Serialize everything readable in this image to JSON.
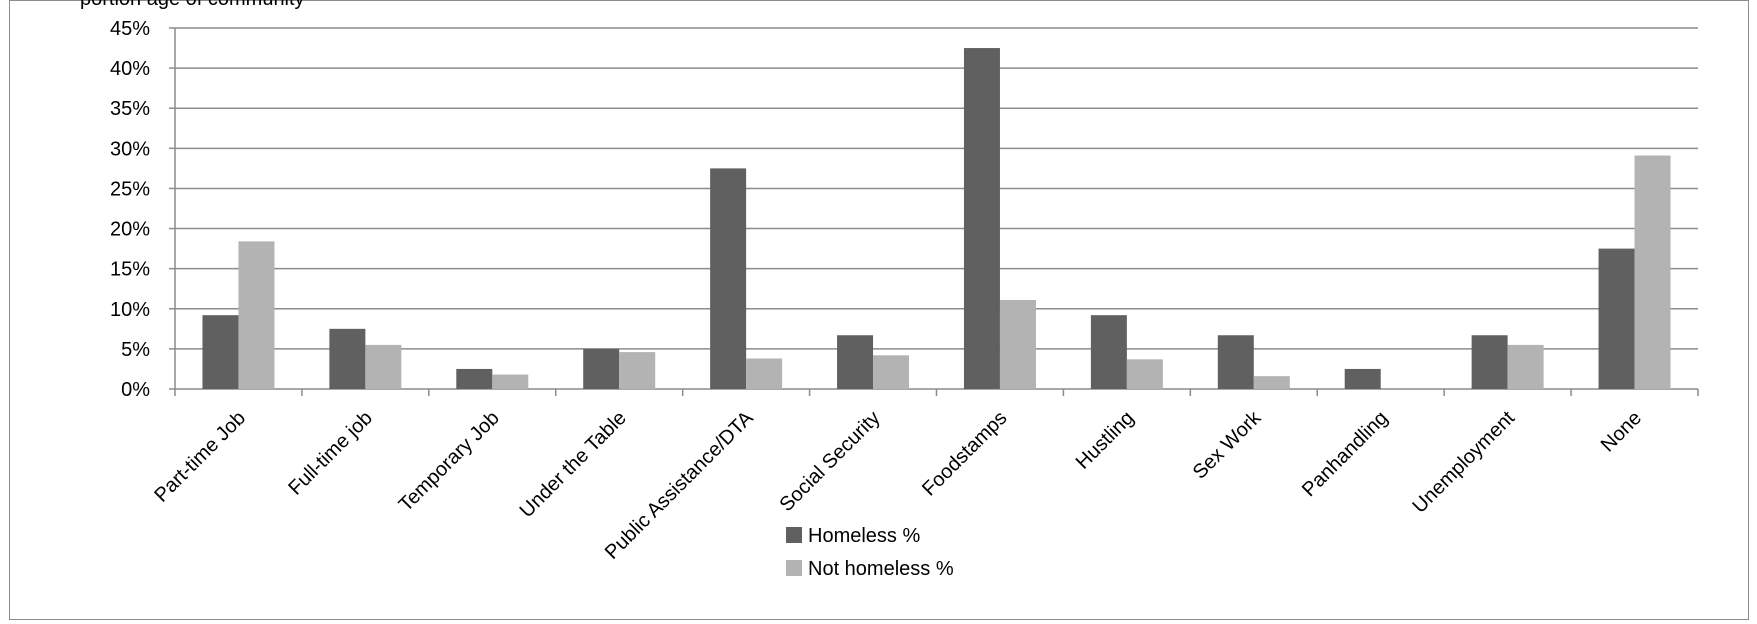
{
  "chart_data": {
    "type": "bar",
    "title_fragment": "portion age of community",
    "categories": [
      "Part-time Job",
      "Full-time job",
      "Temporary Job",
      "Under the Table",
      "Public Assistance/DTA",
      "Social Security",
      "Foodstamps",
      "Hustling",
      "Sex Work",
      "Panhandling",
      "Unemployment",
      "None"
    ],
    "series": [
      {
        "name": "Homeless %",
        "color": "#606060",
        "values": [
          9.2,
          7.5,
          2.5,
          5.0,
          27.5,
          6.7,
          42.5,
          9.2,
          6.7,
          2.5,
          6.7,
          17.5
        ]
      },
      {
        "name": "Not homeless %",
        "color": "#b3b3b3",
        "values": [
          18.4,
          5.5,
          1.8,
          4.6,
          3.8,
          4.2,
          11.1,
          3.7,
          1.6,
          0.0,
          5.5,
          29.1
        ]
      }
    ],
    "yticks": [
      "0%",
      "5%",
      "10%",
      "15%",
      "20%",
      "25%",
      "30%",
      "35%",
      "40%",
      "45%"
    ],
    "ylim": [
      0,
      45
    ],
    "grid": true,
    "legend_position": "bottom-center"
  }
}
